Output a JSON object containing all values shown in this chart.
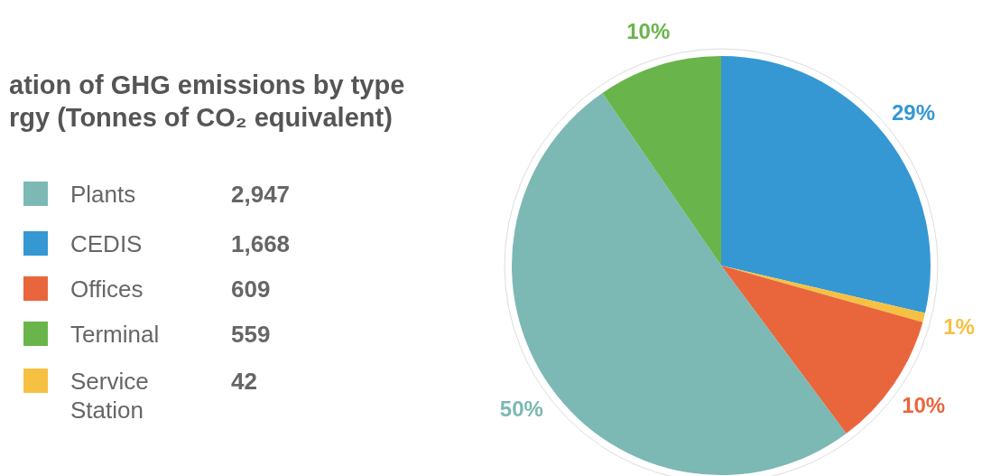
{
  "chart_data": {
    "type": "pie",
    "title": "ation of GHG emissions by type\nrgy (Tonnes of CO₂ equivalent)",
    "categories": [
      "CEDIS",
      "Service Station",
      "Offices",
      "Plants",
      "Terminal"
    ],
    "values": [
      1668,
      42,
      609,
      2947,
      559
    ],
    "colors": [
      "#3598d3",
      "#f6c142",
      "#e9663d",
      "#7cb8b4",
      "#6ab54b"
    ],
    "value_labels": [
      "1,668",
      "42",
      "609",
      "2,947",
      "559"
    ],
    "annotations": [
      "29%",
      "1%",
      "10%",
      "50%",
      "10%"
    ],
    "legend": "left"
  }
}
